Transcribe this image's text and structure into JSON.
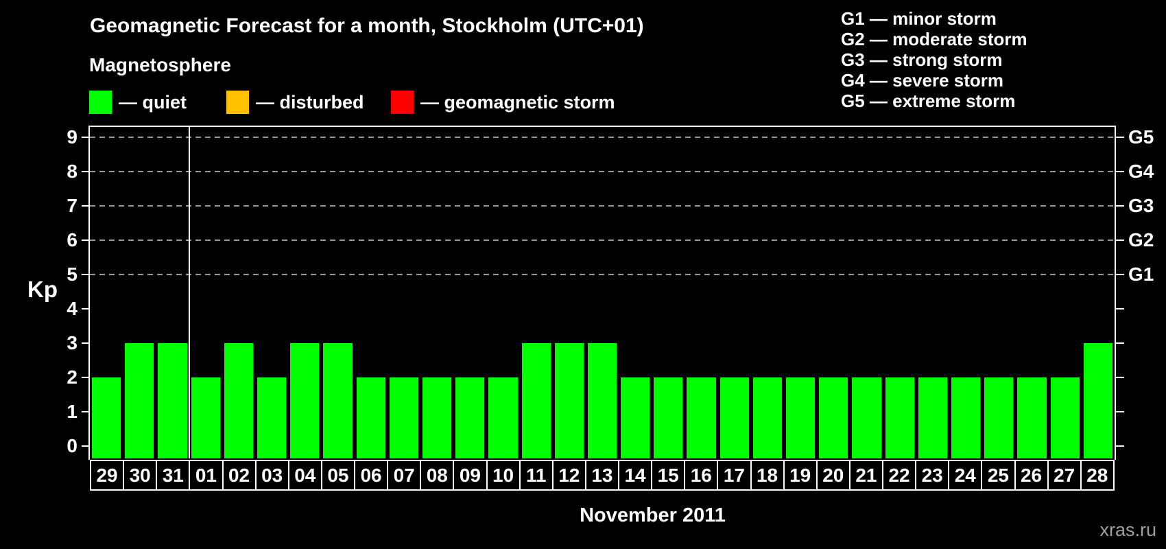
{
  "header": {
    "title": "Geomagnetic Forecast for a month, Stockholm (UTC+01)",
    "subtitle": "Magnetosphere"
  },
  "legend": {
    "items": [
      {
        "label": "— quiet",
        "color": "#00ff00"
      },
      {
        "label": "— disturbed",
        "color": "#ffc000"
      },
      {
        "label": "— geomagnetic storm",
        "color": "#ff0000"
      }
    ]
  },
  "storm_scale": {
    "items": [
      "G1 — minor storm",
      "G2 — moderate storm",
      "G3 — strong storm",
      "G4 — severe storm",
      "G5 — extreme storm"
    ]
  },
  "watermark": "xras.ru",
  "chart_data": {
    "type": "bar",
    "title": "Geomagnetic Forecast for a month, Stockholm (UTC+01)",
    "xlabel": "November 2011",
    "ylabel": "Kp",
    "ylim": [
      0,
      9
    ],
    "y_ticks": [
      0,
      1,
      2,
      3,
      4,
      5,
      6,
      7,
      8,
      9
    ],
    "grid_levels": [
      5,
      6,
      7,
      8,
      9
    ],
    "right_axis_labels": [
      {
        "kp": 5,
        "label": "G1"
      },
      {
        "kp": 6,
        "label": "G2"
      },
      {
        "kp": 7,
        "label": "G3"
      },
      {
        "kp": 8,
        "label": "G4"
      },
      {
        "kp": 9,
        "label": "G5"
      }
    ],
    "categories": [
      "29",
      "30",
      "31",
      "01",
      "02",
      "03",
      "04",
      "05",
      "06",
      "07",
      "08",
      "09",
      "10",
      "11",
      "12",
      "13",
      "14",
      "15",
      "16",
      "17",
      "18",
      "19",
      "20",
      "21",
      "22",
      "23",
      "24",
      "25",
      "26",
      "27",
      "28"
    ],
    "values": [
      2,
      3,
      3,
      2,
      3,
      2,
      3,
      3,
      2,
      2,
      2,
      2,
      2,
      3,
      3,
      3,
      2,
      2,
      2,
      2,
      2,
      2,
      2,
      2,
      2,
      2,
      2,
      2,
      2,
      2,
      3
    ],
    "bar_color": "#00ff00",
    "grid_color": "#999999",
    "month_separator_after": "31",
    "legend_position": "top"
  }
}
